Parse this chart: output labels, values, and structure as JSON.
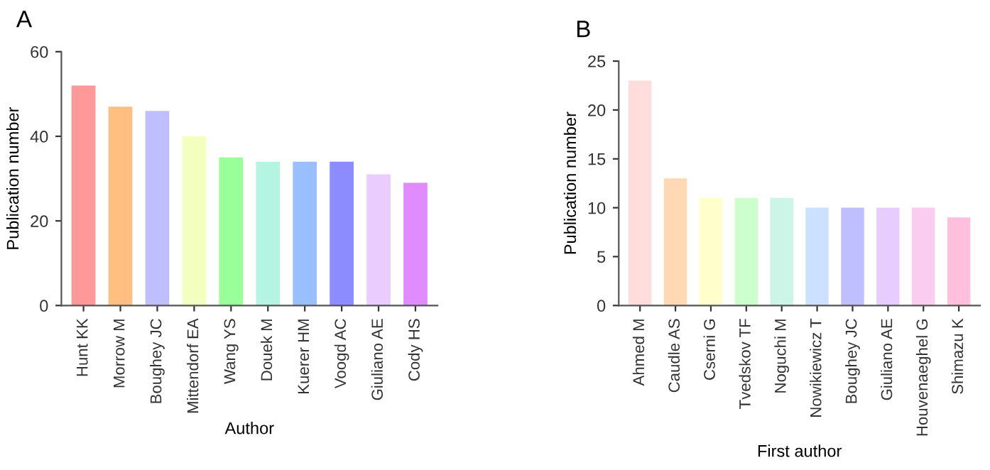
{
  "chart_data": [
    {
      "type": "bar",
      "title": "A",
      "xlabel": "Author",
      "ylabel": "Publication number",
      "categories": [
        "Hunt KK",
        "Morrow M",
        "Boughey JC",
        "Mittendorf EA",
        "Wang YS",
        "Douek M",
        "Kuerer HM",
        "Voogd AC",
        "Giuliano AE",
        "Cody HS"
      ],
      "values": [
        52,
        47,
        46,
        40,
        35,
        34,
        34,
        34,
        31,
        29
      ],
      "colors": [
        "#ff9999",
        "#ffbf80",
        "#bfbfff",
        "#f2ffbf",
        "#99ff99",
        "#b3f5e0",
        "#99bfff",
        "#8c8cff",
        "#ebccff",
        "#e08cff"
      ],
      "ylim": [
        0,
        60
      ],
      "yticks": [
        0,
        20,
        40,
        60
      ],
      "grid": false
    },
    {
      "type": "bar",
      "title": "B",
      "xlabel": "First author",
      "ylabel": "Publication number",
      "categories": [
        "Ahmed M",
        "Caudle AS",
        "Cserni G",
        "Tvedskov TF",
        "Noguchi M",
        "Nowikiewicz T",
        "Boughey JC",
        "Giuliano AE",
        "Houvenaeghel G",
        "Shimazu K"
      ],
      "values": [
        23,
        13,
        11,
        11,
        11,
        10,
        10,
        10,
        10,
        9
      ],
      "colors": [
        "#ffdddd",
        "#ffd9b3",
        "#ffffcc",
        "#ccffcc",
        "#ccf5e8",
        "#cce0ff",
        "#bfbfff",
        "#e6ccff",
        "#f9ccf0",
        "#ffbfdd"
      ],
      "ylim": [
        0,
        25
      ],
      "yticks": [
        0,
        5,
        10,
        15,
        20,
        25
      ],
      "grid": false
    }
  ]
}
